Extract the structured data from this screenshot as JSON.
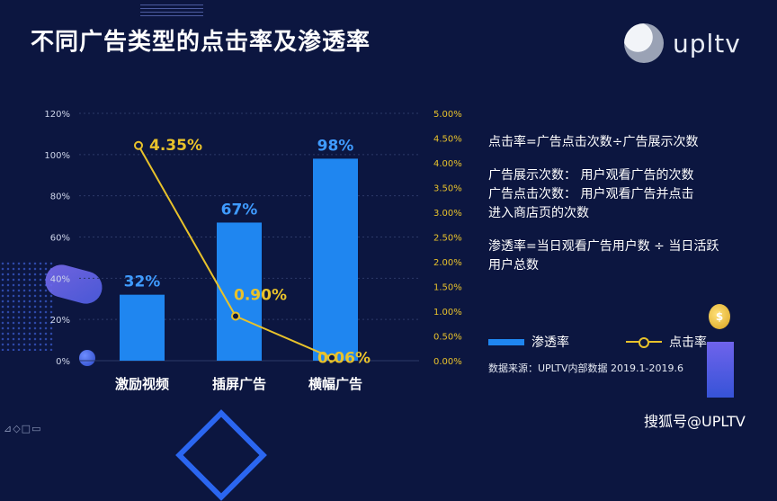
{
  "title": "不同广告类型的点击率及渗透率",
  "logo": {
    "text": "upltv"
  },
  "chart_data": {
    "type": "bar",
    "categories": [
      "激励视频",
      "插屏广告",
      "横幅广告"
    ],
    "series": [
      {
        "name": "渗透率",
        "type": "bar",
        "axis": "left",
        "values": [
          32,
          67,
          98
        ],
        "labels": [
          "32%",
          "67%",
          "98%"
        ],
        "color": "#1f86f0"
      },
      {
        "name": "点击率",
        "type": "line",
        "axis": "right",
        "values": [
          4.35,
          0.9,
          0.06
        ],
        "labels": [
          "4.35%",
          "0.90%",
          "0.06%"
        ],
        "color": "#e8c22b"
      }
    ],
    "y_left": {
      "ylim": [
        0,
        120
      ],
      "ticks": [
        "0%",
        "20%",
        "40%",
        "60%",
        "80%",
        "100%",
        "120%"
      ]
    },
    "y_right": {
      "ylim": [
        0,
        5.0
      ],
      "ticks": [
        "0.00%",
        "0.50%",
        "1.00%",
        "1.50%",
        "2.00%",
        "2.50%",
        "3.00%",
        "3.50%",
        "4.00%",
        "4.50%",
        "5.00%"
      ]
    },
    "grid": true,
    "legend": "bottom-right"
  },
  "info": {
    "line1": "点击率=广告点击次数÷广告展示次数",
    "line2": "广告展示次数： 用户观看广告的次数",
    "line3": "广告点击次数： 用户观看广告并点击",
    "line4": "进入商店页的次数",
    "line5": "渗透率=当日观看广告用户数 ÷ 当日活跃",
    "line6": "用户总数"
  },
  "legend": {
    "bar_label": "渗透率",
    "line_label": "点击率"
  },
  "source": "数据来源：UPLTV内部数据  2019.1-2019.6",
  "watermark": "搜狐号@UPLTV",
  "colors": {
    "background": "#0c1640",
    "bar": "#1f86f0",
    "line": "#e8c22b",
    "right_axis_text": "#e8c22b"
  }
}
